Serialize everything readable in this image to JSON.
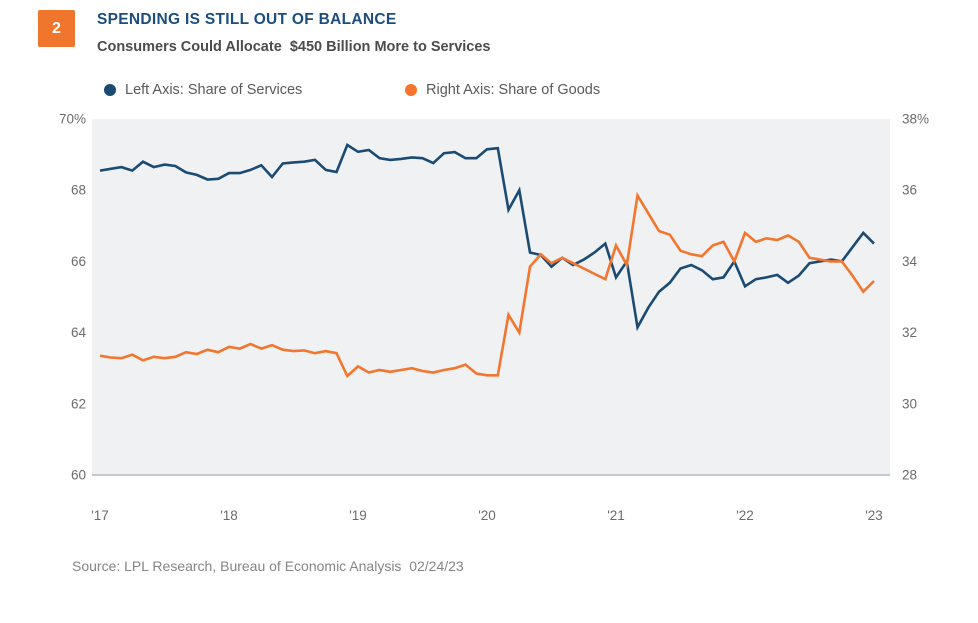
{
  "header": {
    "figure_number": "2",
    "title": "SPENDING IS STILL OUT OF BALANCE",
    "subtitle": "Consumers Could Allocate  $450 Billion More to Services"
  },
  "legend": {
    "left_label": "Left Axis: Share of Services",
    "right_label": "Right Axis: Share of Goods"
  },
  "source": "Source: LPL Research, Bureau of Economic Analysis  02/24/23",
  "colors": {
    "services_line": "#1b4a72",
    "goods_line": "#f4752e",
    "badge_bg": "#f0762e",
    "title_text": "#1b4d7e",
    "plot_bg": "#eff1f3",
    "axis_line": "#c5c9cd",
    "tick_text": "#6b6b6b"
  },
  "chart_data": {
    "type": "line",
    "title": "Spending Is Still Out of Balance",
    "x_start": "2017-01",
    "x_end": "2023-01",
    "frequency": "monthly",
    "x_tick_labels": [
      "'17",
      "'18",
      "'19",
      "'20",
      "'21",
      "'22",
      "'23"
    ],
    "grid": false,
    "left_axis": {
      "label": "Share of Services (%)",
      "range": [
        60,
        70
      ],
      "tick_values": [
        70,
        68,
        66,
        64,
        62,
        60
      ],
      "tick_labels": [
        "70%",
        "68",
        "66",
        "64",
        "62",
        "60"
      ]
    },
    "right_axis": {
      "label": "Share of Goods (%)",
      "range": [
        28,
        38
      ],
      "tick_values": [
        38,
        36,
        34,
        32,
        30,
        28
      ],
      "tick_labels": [
        "38%",
        "36",
        "34",
        "32",
        "30",
        "28"
      ]
    },
    "series": [
      {
        "name": "services",
        "legend": "Left Axis: Share of Services",
        "axis": "left",
        "color": "#1b4a72",
        "values": [
          68.55,
          68.6,
          68.65,
          68.55,
          68.8,
          68.65,
          68.72,
          68.68,
          68.5,
          68.43,
          68.3,
          68.32,
          68.48,
          68.48,
          68.57,
          68.7,
          68.37,
          68.75,
          68.78,
          68.8,
          68.85,
          68.57,
          68.51,
          69.27,
          69.08,
          69.13,
          68.9,
          68.85,
          68.88,
          68.92,
          68.9,
          68.76,
          69.04,
          69.07,
          68.9,
          68.9,
          69.15,
          69.18,
          67.45,
          68.0,
          66.25,
          66.18,
          65.85,
          66.1,
          65.9,
          66.05,
          66.25,
          66.5,
          65.55,
          66.0,
          64.15,
          64.7,
          65.15,
          65.4,
          65.8,
          65.9,
          65.75,
          65.5,
          65.55,
          66.0,
          65.3,
          65.5,
          65.55,
          65.62,
          65.4,
          65.6,
          65.95,
          66.0,
          66.05,
          66.0,
          66.4,
          66.8,
          66.5
        ]
      },
      {
        "name": "goods",
        "legend": "Right Axis: Share of Goods",
        "axis": "right",
        "color": "#f4752e",
        "values": [
          31.35,
          31.3,
          31.28,
          31.38,
          31.22,
          31.32,
          31.28,
          31.32,
          31.45,
          31.4,
          31.52,
          31.45,
          31.6,
          31.55,
          31.68,
          31.55,
          31.65,
          31.52,
          31.48,
          31.5,
          31.42,
          31.48,
          31.42,
          30.78,
          31.05,
          30.88,
          30.95,
          30.9,
          30.95,
          31.0,
          30.92,
          30.88,
          30.95,
          31.0,
          31.1,
          30.85,
          30.8,
          30.8,
          32.5,
          32.0,
          33.85,
          34.2,
          33.95,
          34.1,
          33.95,
          33.8,
          33.65,
          33.5,
          34.45,
          33.9,
          35.85,
          35.35,
          34.85,
          34.75,
          34.3,
          34.2,
          34.15,
          34.45,
          34.55,
          34.0,
          34.8,
          34.55,
          34.65,
          34.6,
          34.73,
          34.55,
          34.1,
          34.05,
          34.0,
          34.0,
          33.6,
          33.15,
          33.45
        ]
      }
    ]
  }
}
